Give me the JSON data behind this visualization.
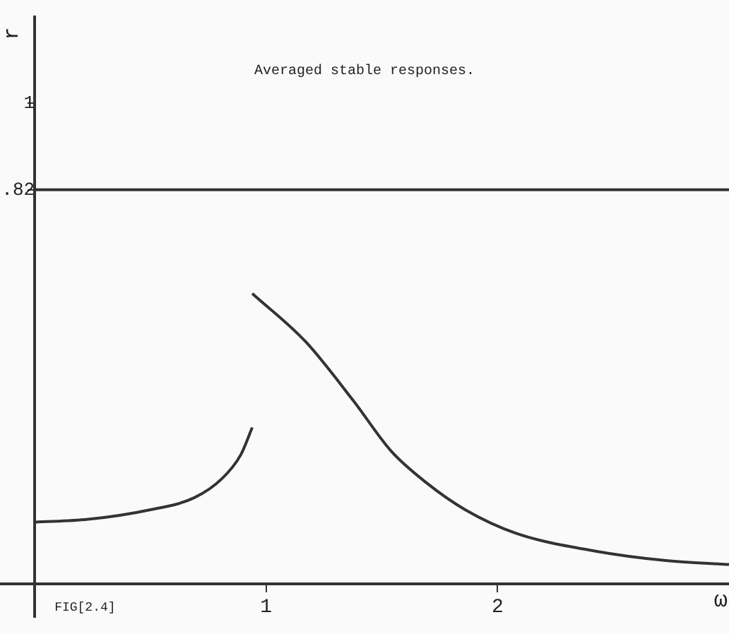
{
  "chart_data": {
    "type": "line",
    "title": "Averaged stable responses.",
    "xlabel": "ω",
    "ylabel": "r",
    "annotations": [
      "FIG[2.4]"
    ],
    "xlim": [
      -0.15,
      3.0
    ],
    "ylim": [
      -0.07,
      1.18
    ],
    "xticks": [
      {
        "value": 0,
        "label": null
      },
      1,
      2
    ],
    "yticks": [
      {
        "value": 0.82,
        "label": ".82"
      },
      1
    ],
    "ref_lines": [
      {
        "axis": "y",
        "value": 0.82,
        "color": "#333333"
      }
    ],
    "grid": false,
    "legend": false,
    "marker": "none",
    "line_style": "solid",
    "series": [
      {
        "color": "#333333",
        "x": [
          0,
          0.23,
          0.5,
          0.69,
          0.81,
          0.89,
          0.94
        ],
        "values": [
          0.128,
          0.134,
          0.154,
          0.179,
          0.219,
          0.268,
          0.325
        ]
      },
      {
        "color": "#333333",
        "x": [
          0.94,
          1.17,
          1.375,
          1.54,
          1.69,
          1.86,
          2.08,
          2.42,
          2.73,
          3.0
        ],
        "values": [
          0.604,
          0.504,
          0.382,
          0.276,
          0.211,
          0.154,
          0.105,
          0.068,
          0.048,
          0.04
        ]
      }
    ]
  }
}
